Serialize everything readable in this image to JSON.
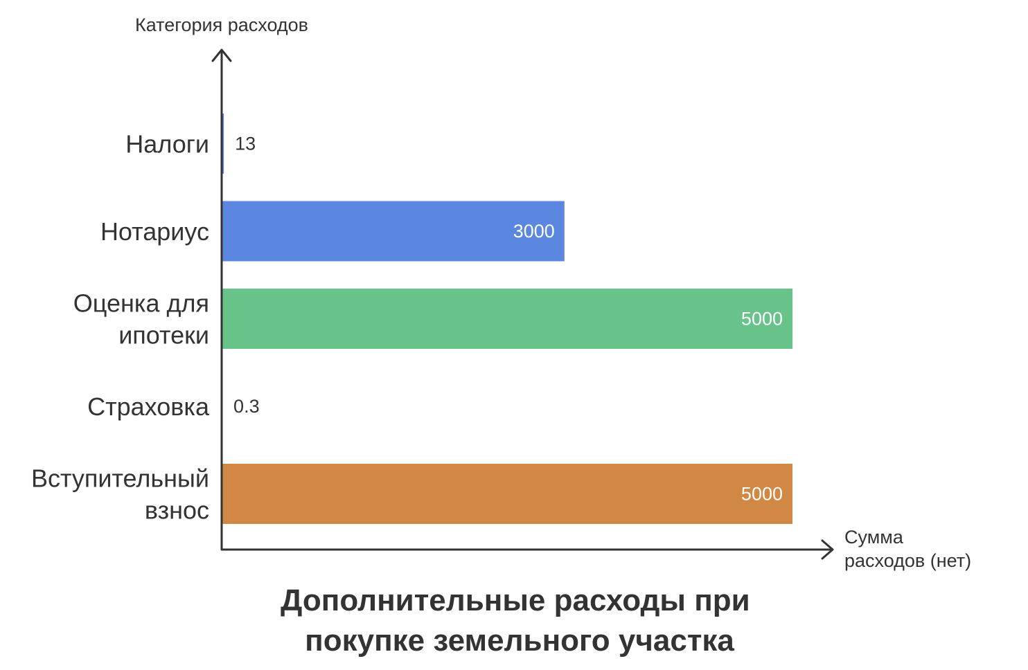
{
  "chart_data": {
    "type": "bar",
    "orientation": "horizontal",
    "title": [
      "Дополнительные расходы при",
      "покупке земельного участка"
    ],
    "ylabel": "Категория расходов",
    "xlabel": [
      "Сумма",
      "расходов (нет)"
    ],
    "categories": [
      [
        "Налоги"
      ],
      [
        "Нотариус"
      ],
      [
        "Оценка для",
        "ипотеки"
      ],
      [
        "Страховка"
      ],
      [
        "Вступительный",
        "взнос"
      ]
    ],
    "values": [
      13,
      3000,
      5000,
      0.3,
      5000
    ],
    "value_labels": [
      "13",
      "3000",
      "5000",
      "0.3",
      "5000"
    ],
    "colors": [
      "#5b87e0",
      "#5b87e0",
      "#67c38a",
      "#5b87e0",
      "#d18844"
    ],
    "xlim": [
      0,
      5000
    ],
    "grid": false,
    "legend": "none"
  }
}
